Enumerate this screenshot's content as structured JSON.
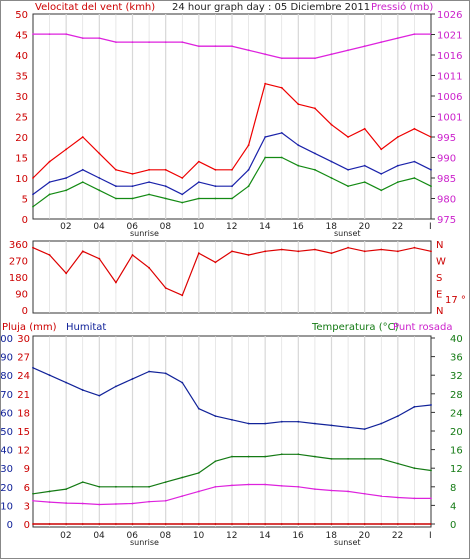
{
  "panel1": {
    "title": "24 hour graph day : 05 Diciembre 2011",
    "left_label": "Velocitat del vent (kmh)",
    "right_label": "Pressió (mb)",
    "left_ticks": [
      "0",
      "5",
      "10",
      "15",
      "20",
      "25",
      "30",
      "35",
      "40",
      "45",
      "50"
    ],
    "right_ticks": [
      "975",
      "980",
      "985",
      "990",
      "995",
      "1001",
      "1006",
      "1011",
      "1016",
      "1021",
      "1026"
    ],
    "hour_ticks": [
      "02",
      "04",
      "06",
      "08",
      "10",
      "12",
      "14",
      "16",
      "18",
      "20",
      "22"
    ],
    "sunrise": "sunrise",
    "sunset": "sunset",
    "end_tick": "I"
  },
  "panel2": {
    "ticks": [
      "360",
      "270",
      "180",
      "90",
      "0"
    ],
    "compass": [
      "N",
      "W",
      "S",
      "E",
      "N"
    ],
    "temp_label": "17 °"
  },
  "panel3": {
    "rain_label": "Pluja (mm)",
    "humidity_label": "Humitat",
    "temp_label": "Temperatura (°C)",
    "dew_label": "Punt rosada",
    "humidity_ticks": [
      "0",
      "10",
      "20",
      "30",
      "40",
      "50",
      "60",
      "70",
      "80",
      "90",
      "100"
    ],
    "rain_ticks": [
      "0",
      "3",
      "6",
      "9",
      "12",
      "15",
      "18",
      "21",
      "24",
      "27",
      "30"
    ],
    "right_ticks": [
      "0",
      "4",
      "8",
      "12",
      "16",
      "20",
      "24",
      "28",
      "32",
      "36",
      "40"
    ],
    "hour_ticks": [
      "02",
      "04",
      "06",
      "08",
      "10",
      "12",
      "14",
      "16",
      "18",
      "20",
      "22"
    ],
    "sunrise": "sunrise",
    "sunset": "sunset",
    "end_tick": "I"
  },
  "colors": {
    "border": "#333333",
    "grid": "#d8d8d8",
    "gust": "#ee0000",
    "wind": "#1a22aa",
    "wind_green": "#138a13",
    "pressure": "#dd22dd",
    "direction": "#dd0000",
    "humidity": "#112299",
    "temperature": "#147a14",
    "dew": "#dd22dd",
    "rain": "#cc0000",
    "title": "#222222"
  },
  "chart_data": [
    {
      "type": "line",
      "name": "wind",
      "x": [
        0,
        1,
        2,
        3,
        4,
        5,
        6,
        7,
        8,
        9,
        10,
        11,
        12,
        13,
        14,
        15,
        16,
        17,
        18,
        19,
        20,
        21,
        22,
        23,
        24
      ],
      "ylim": [
        0,
        50
      ],
      "y2lim": [
        975,
        1026
      ],
      "series": [
        {
          "name": "gust",
          "axis": "left",
          "values": [
            10,
            14,
            17,
            20,
            16,
            12,
            11,
            12,
            12,
            10,
            14,
            12,
            12,
            18,
            33,
            32,
            28,
            27,
            23,
            20,
            22,
            17,
            20,
            22,
            20
          ]
        },
        {
          "name": "wind",
          "axis": "left",
          "values": [
            6,
            9,
            10,
            12,
            10,
            8,
            8,
            9,
            8,
            6,
            9,
            8,
            8,
            12,
            20,
            21,
            18,
            16,
            14,
            12,
            13,
            11,
            13,
            14,
            12
          ]
        },
        {
          "name": "wind_green",
          "axis": "left",
          "values": [
            3,
            6,
            7,
            9,
            7,
            5,
            5,
            6,
            5,
            4,
            5,
            5,
            5,
            8,
            15,
            15,
            13,
            12,
            10,
            8,
            9,
            7,
            9,
            10,
            8
          ]
        },
        {
          "name": "pressure",
          "axis": "right",
          "values": [
            1021,
            1021,
            1021,
            1020,
            1020,
            1019,
            1019,
            1019,
            1019,
            1019,
            1018,
            1018,
            1018,
            1017,
            1016,
            1015,
            1015,
            1015,
            1016,
            1017,
            1018,
            1019,
            1020,
            1021,
            1021
          ]
        }
      ]
    },
    {
      "type": "line",
      "name": "direction",
      "x": [
        0,
        1,
        2,
        3,
        4,
        5,
        6,
        7,
        8,
        9,
        10,
        11,
        12,
        13,
        14,
        15,
        16,
        17,
        18,
        19,
        20,
        21,
        22,
        23,
        24
      ],
      "ylim": [
        0,
        360
      ],
      "series": [
        {
          "name": "direction",
          "values": [
            340,
            300,
            200,
            320,
            280,
            150,
            300,
            230,
            120,
            80,
            310,
            260,
            320,
            300,
            320,
            330,
            320,
            330,
            310,
            340,
            320,
            330,
            320,
            340,
            320
          ]
        }
      ]
    },
    {
      "type": "line",
      "name": "thermo",
      "x": [
        0,
        1,
        2,
        3,
        4,
        5,
        6,
        7,
        8,
        9,
        10,
        11,
        12,
        13,
        14,
        15,
        16,
        17,
        18,
        19,
        20,
        21,
        22,
        23,
        24
      ],
      "ylim": [
        0,
        100
      ],
      "y2lim": [
        0,
        40
      ],
      "series": [
        {
          "name": "humidity",
          "axis": "left",
          "values": [
            84,
            80,
            76,
            72,
            69,
            74,
            78,
            82,
            81,
            76,
            62,
            58,
            56,
            54,
            54,
            55,
            55,
            54,
            53,
            52,
            51,
            54,
            58,
            63,
            64
          ]
        },
        {
          "name": "temperature",
          "axis": "right",
          "values": [
            6.5,
            7,
            7.5,
            9,
            8,
            8,
            8,
            8,
            9,
            10,
            11,
            13.5,
            14.5,
            14.5,
            14.5,
            15,
            15,
            14.5,
            14,
            14,
            14,
            14,
            13,
            12,
            11.5
          ]
        },
        {
          "name": "dew",
          "axis": "right",
          "values": [
            5,
            4.7,
            4.5,
            4.4,
            4.2,
            4.3,
            4.4,
            4.8,
            5,
            6,
            7,
            8,
            8.3,
            8.5,
            8.5,
            8.2,
            8,
            7.5,
            7.2,
            7,
            6.5,
            6,
            5.7,
            5.5,
            5.5
          ]
        },
        {
          "name": "rain",
          "axis": "rain",
          "values": [
            0,
            0,
            0,
            0,
            0,
            0,
            0,
            0,
            0,
            0,
            0,
            0,
            0,
            0,
            0,
            0,
            0,
            0,
            0,
            0,
            0,
            0,
            0,
            0,
            0
          ]
        }
      ]
    }
  ]
}
